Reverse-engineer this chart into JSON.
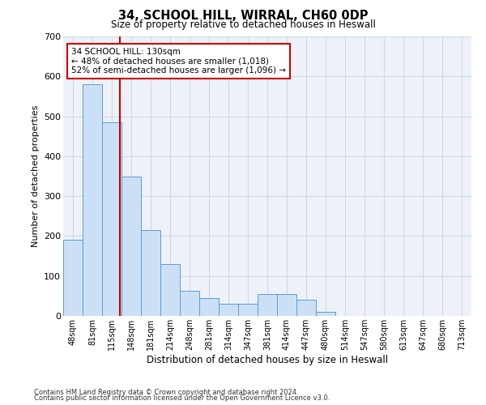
{
  "title": "34, SCHOOL HILL, WIRRAL, CH60 0DP",
  "subtitle": "Size of property relative to detached houses in Heswall",
  "xlabel": "Distribution of detached houses by size in Heswall",
  "ylabel": "Number of detached properties",
  "categories": [
    "48sqm",
    "81sqm",
    "115sqm",
    "148sqm",
    "181sqm",
    "214sqm",
    "248sqm",
    "281sqm",
    "314sqm",
    "347sqm",
    "381sqm",
    "414sqm",
    "447sqm",
    "480sqm",
    "514sqm",
    "547sqm",
    "580sqm",
    "613sqm",
    "647sqm",
    "680sqm",
    "713sqm"
  ],
  "values": [
    190,
    580,
    485,
    350,
    215,
    130,
    62,
    44,
    30,
    30,
    55,
    55,
    40,
    10,
    0,
    0,
    0,
    0,
    0,
    0,
    0
  ],
  "bar_color": "#cce0f5",
  "bar_edge_color": "#5b9bd5",
  "vline_x": 2.42,
  "marker_label_line1": "34 SCHOOL HILL: 130sqm",
  "marker_label_line2": "← 48% of detached houses are smaller (1,018)",
  "marker_label_line3": "52% of semi-detached houses are larger (1,096) →",
  "annotation_box_color": "#ffffff",
  "annotation_box_edge": "#cc0000",
  "vline_color": "#cc0000",
  "grid_color": "#ccd9ea",
  "bg_color": "#eef2f8",
  "footnote1": "Contains HM Land Registry data © Crown copyright and database right 2024.",
  "footnote2": "Contains public sector information licensed under the Open Government Licence v3.0.",
  "ylim": [
    0,
    700
  ],
  "yticks": [
    0,
    100,
    200,
    300,
    400,
    500,
    600,
    700
  ]
}
